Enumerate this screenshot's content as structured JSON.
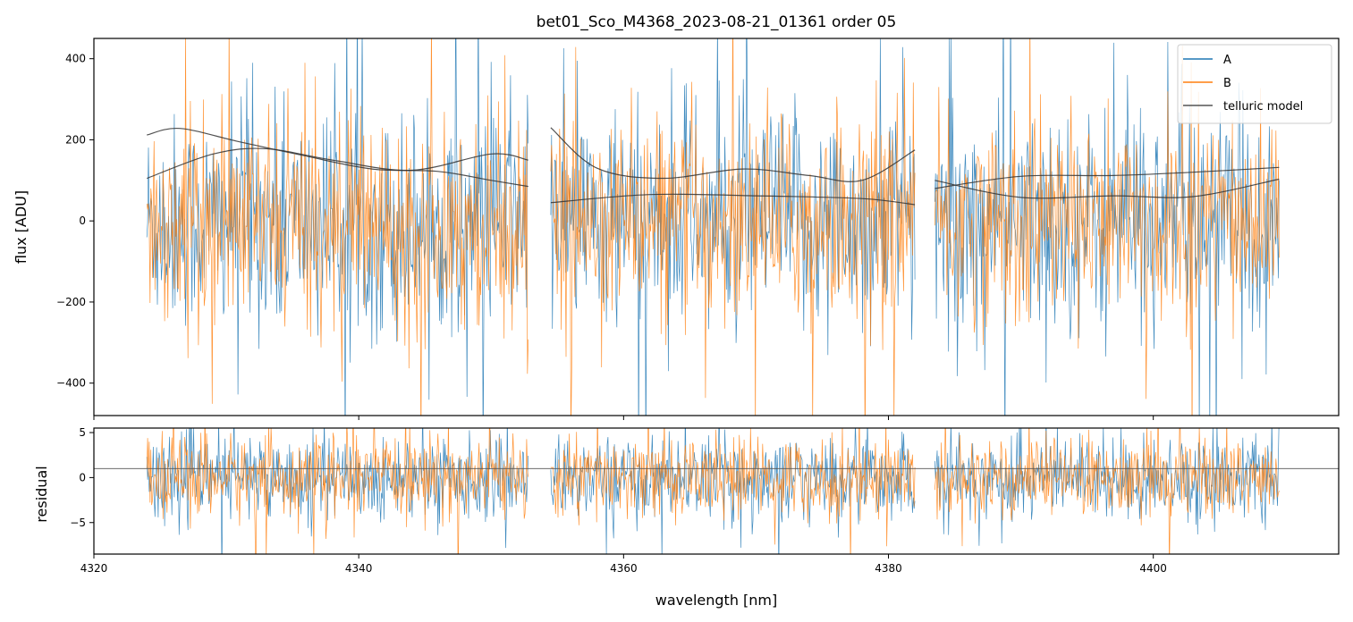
{
  "chart_data": [
    {
      "type": "line",
      "panel": "flux",
      "title": "bet01_Sco_M4368_2023-08-21_01361  order 05",
      "xlabel": "",
      "ylabel": "flux [ADU]",
      "xlim": [
        4320,
        4414
      ],
      "ylim": [
        -480,
        450
      ],
      "yticks": [
        -400,
        -200,
        0,
        200,
        400
      ],
      "ytick_labels": [
        "−400",
        "−200",
        "0",
        "200",
        "400"
      ],
      "xticks": [
        4320,
        4340,
        4360,
        4380,
        4400
      ],
      "segments": [
        [
          4324.0,
          4352.8
        ],
        [
          4354.5,
          4382.0
        ],
        [
          4383.5,
          4409.5
        ]
      ],
      "legend": {
        "placement": "top-right",
        "entries": [
          "A",
          "B",
          "telluric model"
        ]
      },
      "colors": {
        "A": "#1f77b4",
        "B": "#ff7f0e",
        "telluric model": "#333333"
      },
      "series": [
        {
          "name": "A",
          "noise_amplitude_approx": 260
        },
        {
          "name": "B",
          "noise_amplitude_approx": 240
        },
        {
          "name": "telluric model",
          "curves": [
            {
              "x": [
                4324,
                4326.5,
                4331,
                4336,
                4341,
                4346,
                4350,
                4352.8
              ],
              "y": [
                212,
                228,
                195,
                160,
                128,
                122,
                100,
                85
              ]
            },
            {
              "x": [
                4324,
                4329,
                4333,
                4338,
                4344,
                4350,
                4352.8
              ],
              "y": [
                105,
                165,
                178,
                150,
                125,
                165,
                150
              ]
            },
            {
              "x": [
                4354.5,
                4358,
                4363,
                4369,
                4374,
                4378,
                4382
              ],
              "y": [
                230,
                130,
                105,
                128,
                112,
                100,
                175
              ]
            },
            {
              "x": [
                4354.5,
                4362,
                4370,
                4378,
                4382
              ],
              "y": [
                45,
                65,
                62,
                55,
                40
              ]
            },
            {
              "x": [
                4383.5,
                4390,
                4397,
                4403,
                4409.5
              ],
              "y": [
                100,
                58,
                62,
                60,
                103
              ]
            },
            {
              "x": [
                4383.5,
                4390,
                4397,
                4403,
                4409.5
              ],
              "y": [
                80,
                110,
                112,
                120,
                132
              ]
            }
          ]
        }
      ]
    },
    {
      "type": "line",
      "panel": "residual",
      "xlabel": "wavelength [nm]",
      "ylabel": "residual",
      "xlim": [
        4320,
        4414
      ],
      "ylim": [
        -8.5,
        5.5
      ],
      "yticks": [
        -5,
        0,
        5
      ],
      "ytick_labels": [
        "−5",
        "0",
        "5"
      ],
      "xticks": [
        4320,
        4340,
        4360,
        4380,
        4400
      ],
      "xtick_labels": [
        "4320",
        "4340",
        "4360",
        "4380",
        "4400"
      ],
      "reference_line_y": 1.0,
      "series": [
        {
          "name": "A",
          "noise_amplitude_approx": 2.2
        },
        {
          "name": "B",
          "noise_amplitude_approx": 2.2
        }
      ]
    }
  ]
}
